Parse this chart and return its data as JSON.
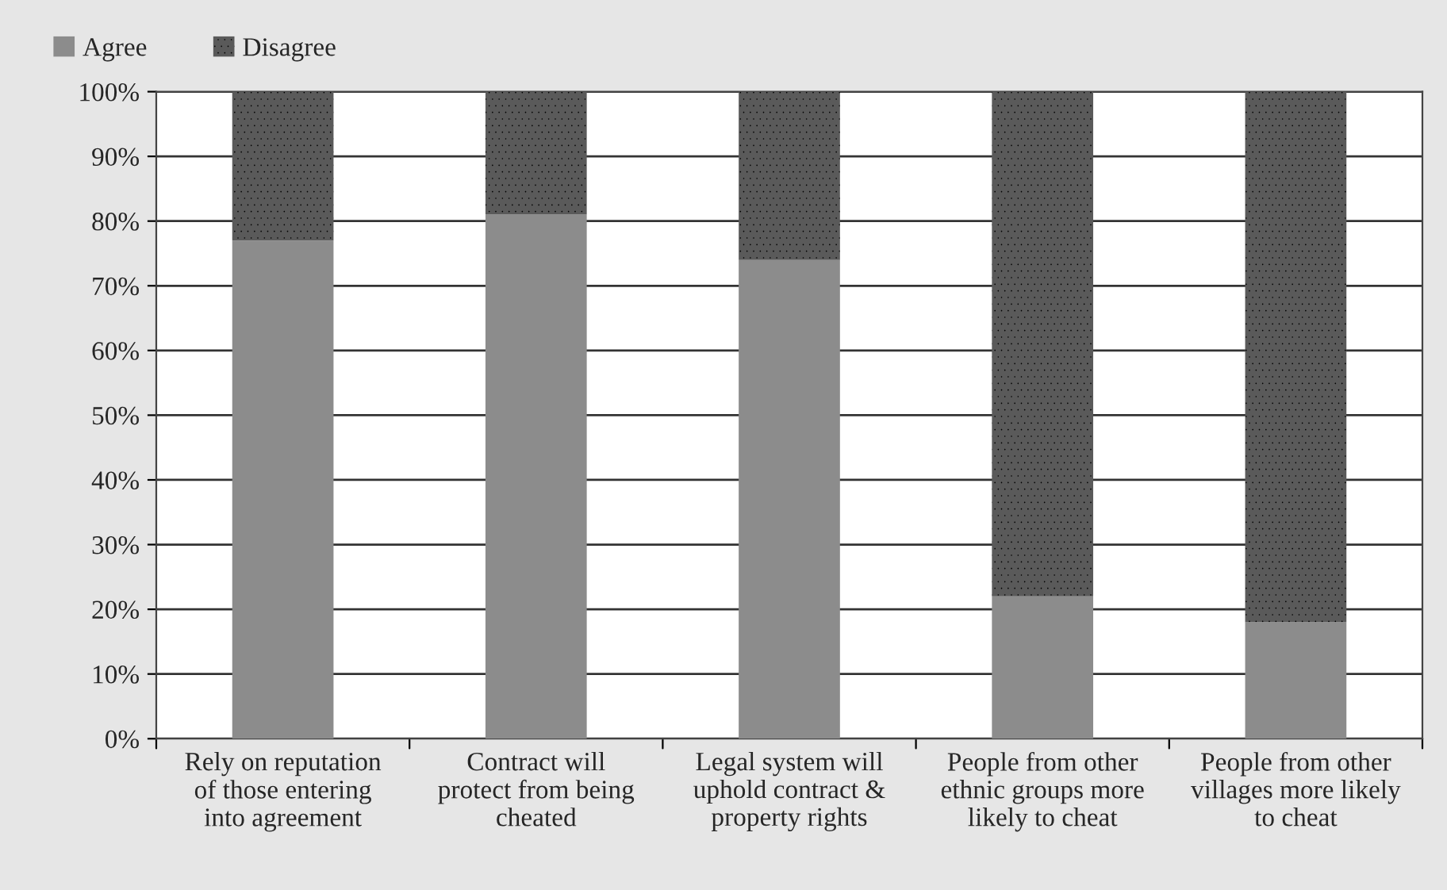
{
  "chart_data": {
    "type": "bar",
    "stacked": true,
    "categories": [
      "Rely on reputation\nof those entering\ninto agreement",
      "Contract will\nprotect from being\ncheated",
      "Legal system will\nuphold contract &\nproperty rights",
      "People from other\nethnic groups more\nlikely to cheat",
      "People from other\nvillages more likely\nto cheat"
    ],
    "series": [
      {
        "name": "Agree",
        "color": "#8c8c8c",
        "values": [
          77,
          81,
          74,
          22,
          18
        ]
      },
      {
        "name": "Disagree",
        "color": "#5a5a5a",
        "values": [
          23,
          19,
          26,
          78,
          82
        ]
      }
    ],
    "ylim": [
      0,
      100
    ],
    "yticks": [
      {
        "value": 0,
        "label": "0%"
      },
      {
        "value": 10,
        "label": "10%"
      },
      {
        "value": 20,
        "label": "20%"
      },
      {
        "value": 30,
        "label": "30%"
      },
      {
        "value": 40,
        "label": "40%"
      },
      {
        "value": 50,
        "label": "50%"
      },
      {
        "value": 60,
        "label": "60%"
      },
      {
        "value": 70,
        "label": "70%"
      },
      {
        "value": 80,
        "label": "80%"
      },
      {
        "value": 90,
        "label": "90%"
      },
      {
        "value": 100,
        "label": "100%"
      }
    ],
    "grid": "y",
    "legend": "top left"
  }
}
